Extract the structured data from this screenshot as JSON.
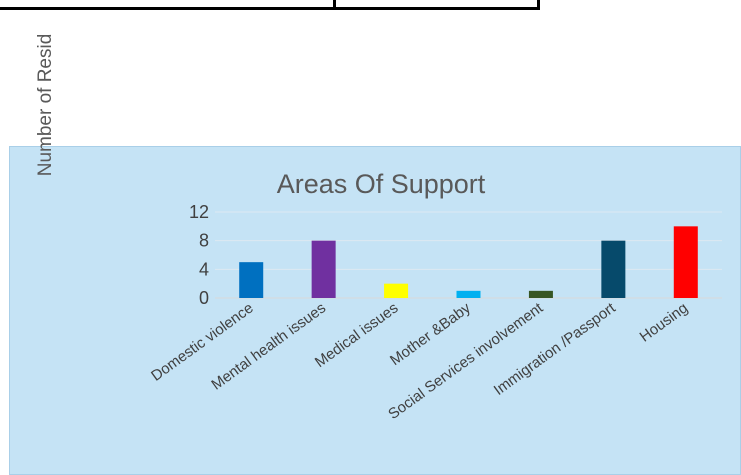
{
  "header_box": {
    "text": ""
  },
  "page": {
    "background": "#ffffff"
  },
  "panel": {
    "background": "#c5e3f5"
  },
  "chart_data": {
    "type": "bar",
    "title": "Areas Of Support",
    "ylabel": "Number of Resid",
    "xlabel": "",
    "ylim": [
      0,
      12
    ],
    "yticks": [
      0,
      4,
      8,
      12
    ],
    "grid": true,
    "legend": "none",
    "categories": [
      "Domestic violence",
      "Mental health issues",
      "Medical issues",
      "Mother &Baby",
      "Social Services involvement",
      "Immigration /Passport",
      "Housing"
    ],
    "values": [
      5,
      8,
      2,
      1,
      1,
      8,
      10
    ],
    "colors": [
      "#0070c0",
      "#7030a0",
      "#ffff00",
      "#00b0f0",
      "#375623",
      "#064a6b",
      "#ff0000"
    ]
  }
}
